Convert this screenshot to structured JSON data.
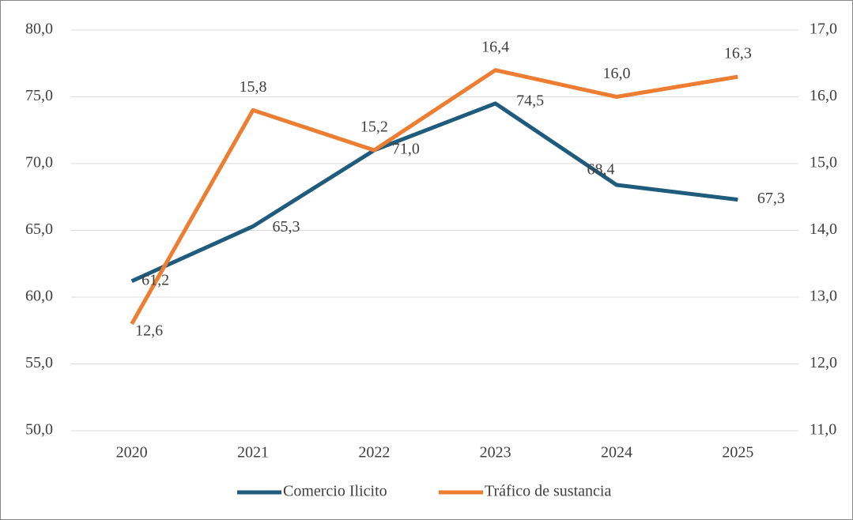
{
  "chart_data": {
    "type": "line",
    "categories": [
      "2020",
      "2021",
      "2022",
      "2023",
      "2024",
      "2025"
    ],
    "series": [
      {
        "name": "Comercio Ilicito",
        "color": "#1f5b7c",
        "values": [
          61.2,
          65.3,
          71.0,
          74.5,
          68.4,
          67.3
        ],
        "value_labels": [
          "61,2",
          "65,3",
          "71,0",
          "74,5",
          "68,4",
          "67,3"
        ]
      },
      {
        "name": "Tráfico de sustancia",
        "color": "#ed7d31",
        "axis": "y2",
        "values": [
          12.6,
          15.8,
          15.2,
          16.4,
          16.0,
          16.3
        ],
        "value_labels": [
          "12,6",
          "15,8",
          "15,2",
          "16,4",
          "16,0",
          "16,3"
        ]
      }
    ],
    "ylim": [
      50,
      80
    ],
    "yticks": [
      {
        "value": 50,
        "label": "50,0"
      },
      {
        "value": 55,
        "label": "55,0"
      },
      {
        "value": 60,
        "label": "60,0"
      },
      {
        "value": 65,
        "label": "65,0"
      },
      {
        "value": 70,
        "label": "70,0"
      },
      {
        "value": 75,
        "label": "75,0"
      },
      {
        "value": 80,
        "label": "80,0"
      }
    ],
    "y2lim": [
      11,
      17
    ],
    "y2ticks": [
      {
        "value": 11,
        "label": "11,0"
      },
      {
        "value": 12,
        "label": "12,0"
      },
      {
        "value": 13,
        "label": "13,0"
      },
      {
        "value": 14,
        "label": "14,0"
      },
      {
        "value": 15,
        "label": "15,0"
      },
      {
        "value": 16,
        "label": "16,0"
      },
      {
        "value": 17,
        "label": "17,0"
      }
    ],
    "grid": true,
    "legend": "bottom"
  }
}
